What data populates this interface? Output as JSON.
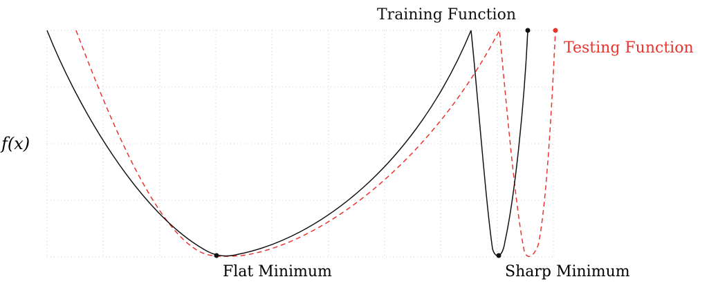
{
  "y_axis_label": "f(x)",
  "labels": {
    "training": "Training Function",
    "testing": "Testing Function",
    "flat_minimum": "Flat Minimum",
    "sharp_minimum": "Sharp Minimum"
  },
  "colors": {
    "training": "#111111",
    "testing": "#e8332e",
    "grid": "#c8c8c8"
  },
  "grid": true
}
